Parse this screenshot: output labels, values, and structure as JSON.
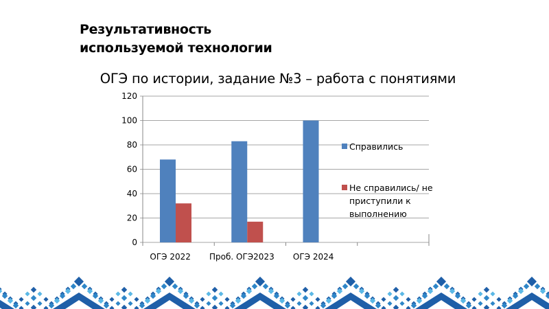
{
  "slide": {
    "heading_line1": "Результативность",
    "heading_line2": "используемой технологии"
  },
  "colors": {
    "series1": "#4F81BD",
    "series2": "#C0504D",
    "grid": "#A6A6A6",
    "ornament_dark": "#1F5FA8",
    "ornament_mid": "#2E86C8",
    "ornament_light": "#5BB8E6"
  },
  "chart_data": {
    "type": "bar",
    "title": "ОГЭ по истории, задание №3 – работа с понятиями",
    "categories": [
      "ОГЭ 2022",
      "Проб. ОГЭ2023",
      "ОГЭ 2024",
      ""
    ],
    "series": [
      {
        "name": "Справились",
        "color": "#4F81BD",
        "values": [
          68,
          83,
          100,
          null
        ]
      },
      {
        "name": "Не справились/ не приступили к выполнению",
        "color": "#C0504D",
        "values": [
          32,
          17,
          0,
          null
        ]
      }
    ],
    "xlabel": "",
    "ylabel": "",
    "ylim": [
      0,
      120
    ],
    "yticks": [
      "0",
      "20",
      "40",
      "60",
      "80",
      "100",
      "120"
    ],
    "grid": true,
    "legend_position": "right"
  },
  "legend": {
    "item1": "Справились",
    "item2_line1": "Не справились/ не",
    "item2_line2": "приступили к",
    "item2_line3": "выполнению"
  }
}
